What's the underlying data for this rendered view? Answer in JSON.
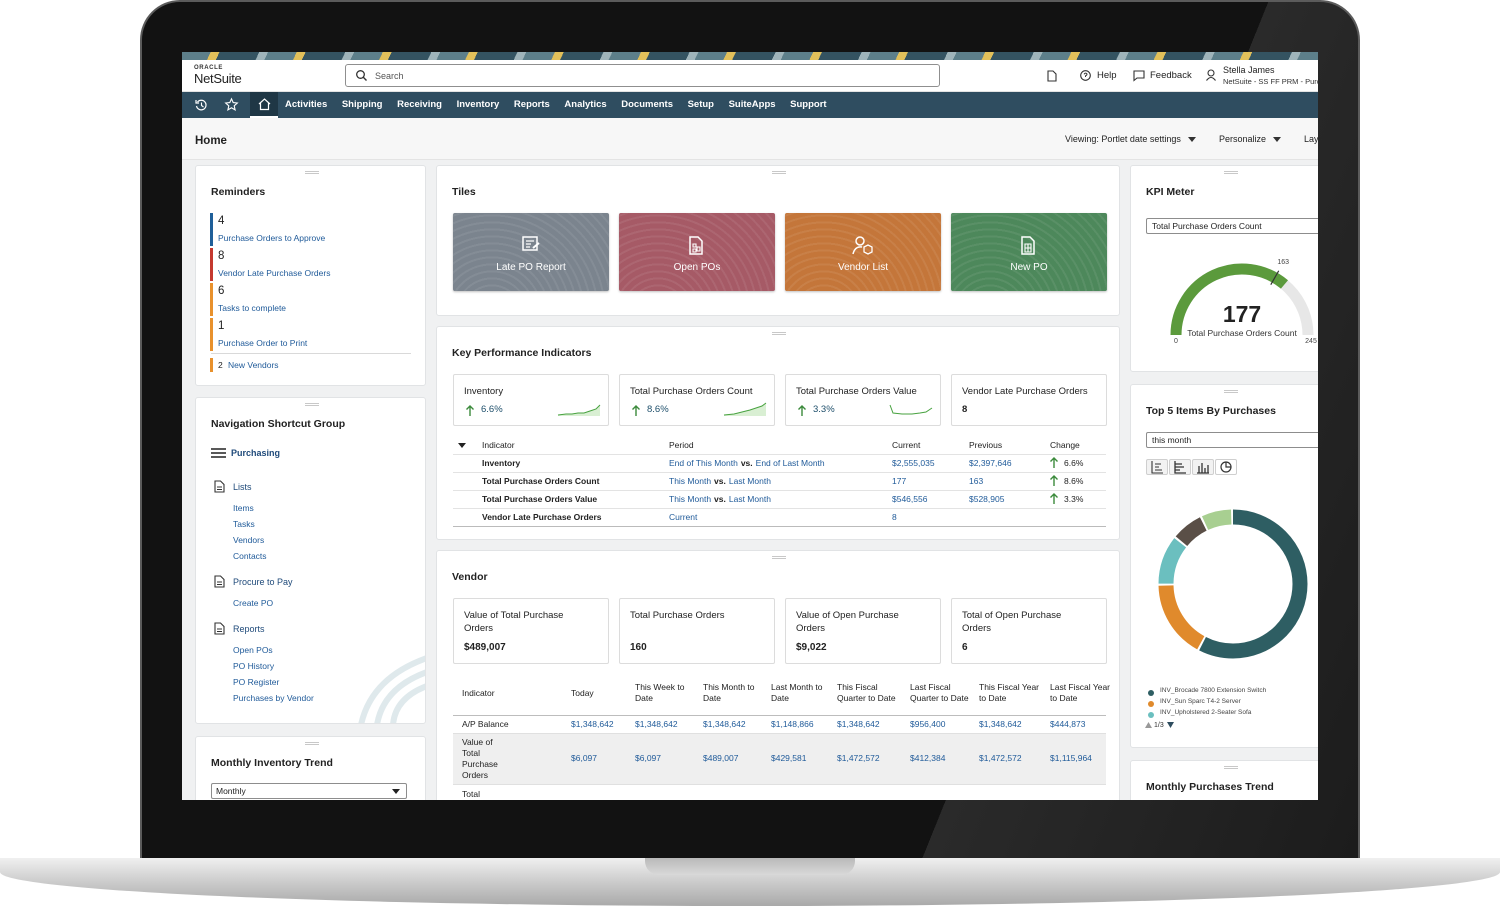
{
  "header": {
    "brand_top": "ORACLE",
    "brand": "NetSuite",
    "search_placeholder": "Search",
    "help": "Help",
    "feedback": "Feedback",
    "user_name": "Stella James",
    "user_role": "NetSuite - SS FF PRM - Purc"
  },
  "nav": [
    "Activities",
    "Shipping",
    "Receiving",
    "Inventory",
    "Reports",
    "Analytics",
    "Documents",
    "Setup",
    "SuiteApps",
    "Support"
  ],
  "page": {
    "title": "Home",
    "viewing": "Viewing: Portlet date settings",
    "personalize": "Personalize",
    "layout": "Lay"
  },
  "reminders": {
    "title": "Reminders",
    "items": [
      {
        "count": "4",
        "label": "Purchase Orders to Approve",
        "color": "#1f5f99"
      },
      {
        "count": "8",
        "label": "Vendor Late Purchase Orders",
        "color": "#c4392f"
      },
      {
        "count": "6",
        "label": "Tasks to complete",
        "color": "#e8912d"
      },
      {
        "count": "1",
        "label": "Purchase Order to Print",
        "color": "#e8912d"
      }
    ],
    "extra": {
      "count": "2",
      "label": "New Vendors",
      "color": "#e8912d"
    }
  },
  "nav_shortcuts": {
    "title": "Navigation Shortcut Group",
    "group": "Purchasing",
    "sections": [
      {
        "name": "Lists",
        "links": [
          "Items",
          "Tasks",
          "Vendors",
          "Contacts"
        ]
      },
      {
        "name": "Procure to Pay",
        "links": [
          "Create PO"
        ]
      },
      {
        "name": "Reports",
        "links": [
          "Open POs",
          "PO History",
          "PO Register",
          "Purchases by Vendor"
        ]
      }
    ]
  },
  "inventory_trend": {
    "title": "Monthly Inventory Trend",
    "select": "Monthly"
  },
  "tiles": {
    "title": "Tiles",
    "items": [
      {
        "label": "Late PO Report",
        "color": "#7b848e"
      },
      {
        "label": "Open POs",
        "color": "#a65a66"
      },
      {
        "label": "Vendor List",
        "color": "#c4763a"
      },
      {
        "label": "New PO",
        "color": "#4d885b"
      }
    ]
  },
  "kpi": {
    "title": "Key Performance Indicators",
    "cards": [
      {
        "name": "Inventory",
        "change": "6.6%"
      },
      {
        "name": "Total Purchase Orders Count",
        "change": "8.6%"
      },
      {
        "name": "Total Purchase Orders Value",
        "change": "3.3%"
      },
      {
        "name": "Vendor Late Purchase Orders",
        "value": "8"
      }
    ],
    "columns": [
      "Indicator",
      "Period",
      "Current",
      "Previous",
      "Change"
    ],
    "rows": [
      {
        "indicator": "Inventory",
        "period": [
          "End of This Month",
          "vs.",
          "End of Last Month"
        ],
        "current": "$2,555,035",
        "previous": "$2,397,646",
        "change": "6.6%"
      },
      {
        "indicator": "Total Purchase Orders Count",
        "period": [
          "This Month",
          "vs.",
          "Last Month"
        ],
        "current": "177",
        "previous": "163",
        "change": "8.6%"
      },
      {
        "indicator": "Total Purchase Orders Value",
        "period": [
          "This Month",
          "vs.",
          "Last Month"
        ],
        "current": "$546,556",
        "previous": "$528,905",
        "change": "3.3%"
      },
      {
        "indicator": "Vendor Late Purchase Orders",
        "period": [
          "Current"
        ],
        "current": "8"
      }
    ]
  },
  "vendor": {
    "title": "Vendor",
    "cards": [
      {
        "label": "Value of Total Purchase Orders",
        "value": "$489,007"
      },
      {
        "label": "Total Purchase Orders",
        "value": "160"
      },
      {
        "label": "Value of Open Purchase Orders",
        "value": "$9,022"
      },
      {
        "label": "Total of Open Purchase Orders",
        "value": "6"
      }
    ],
    "columns": [
      "Indicator",
      "Today",
      "This Week to Date",
      "This Month to Date",
      "Last Month to Date",
      "This Fiscal Quarter to Date",
      "Last Fiscal Quarter to Date",
      "This Fiscal Year to Date",
      "Last Fiscal Year to Date"
    ],
    "rows": [
      [
        "A/P Balance",
        "$1,348,642",
        "$1,348,642",
        "$1,348,642",
        "$1,148,866",
        "$1,348,642",
        "$956,400",
        "$1,348,642",
        "$444,873"
      ],
      [
        "Value of Total Purchase Orders",
        "$6,097",
        "$6,097",
        "$489,007",
        "$429,581",
        "$1,472,572",
        "$412,384",
        "$1,472,572",
        "$1,115,964"
      ],
      [
        "Total"
      ]
    ]
  },
  "kpi_meter": {
    "title": "KPI Meter",
    "select": "Total Purchase Orders Count",
    "value": 177,
    "label": "Total Purchase Orders Count",
    "min": 0,
    "max": 245,
    "target": 163,
    "color": "#5b9a3c"
  },
  "top5": {
    "title": "Top 5 Items By Purchases",
    "select": "this month",
    "legend": [
      {
        "name": "INV_Brocade 7800 Extension Switch",
        "color": "#2e5e63"
      },
      {
        "name": "INV_Sun Sparc T4-2 Server",
        "color": "#e08a2c"
      },
      {
        "name": "INV_Upholstered 2-Seater Sofa",
        "color": "#6bbfbf"
      }
    ],
    "pager": "1/3"
  },
  "purchases_trend": {
    "title": "Monthly Purchases Trend"
  }
}
